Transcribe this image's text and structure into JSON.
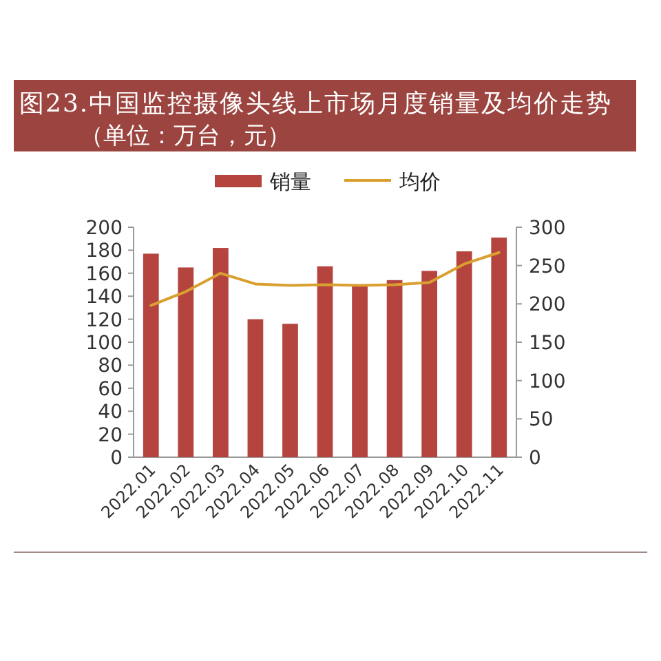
{
  "chart_data": {
    "type": "bar",
    "title": "图23.中国监控摄像头线上市场月度销量及均价走势",
    "subtitle": "（单位：万台，元）",
    "categories": [
      "2022.01",
      "2022.02",
      "2022.03",
      "2022.04",
      "2022.05",
      "2022.06",
      "2022.07",
      "2022.08",
      "2022.09",
      "2022.10",
      "2022.11"
    ],
    "series": [
      {
        "name": "销量",
        "color": "#b5443f",
        "values": [
          177,
          165,
          182,
          120,
          116,
          166,
          150,
          154,
          162,
          179,
          191
        ]
      },
      {
        "name": "均价",
        "type": "line",
        "axis": "y2",
        "color": "#d9a030",
        "values": [
          198,
          216,
          240,
          226,
          224,
          225,
          224,
          225,
          228,
          252,
          267
        ]
      }
    ],
    "ylim": [
      0,
      200
    ],
    "yticks": [
      0,
      20,
      40,
      60,
      80,
      100,
      120,
      140,
      160,
      180,
      200
    ],
    "y2lim": [
      0,
      300
    ],
    "y2ticks": [
      0,
      50,
      100,
      150,
      200,
      250,
      300
    ],
    "legend": "top",
    "grid": false
  }
}
